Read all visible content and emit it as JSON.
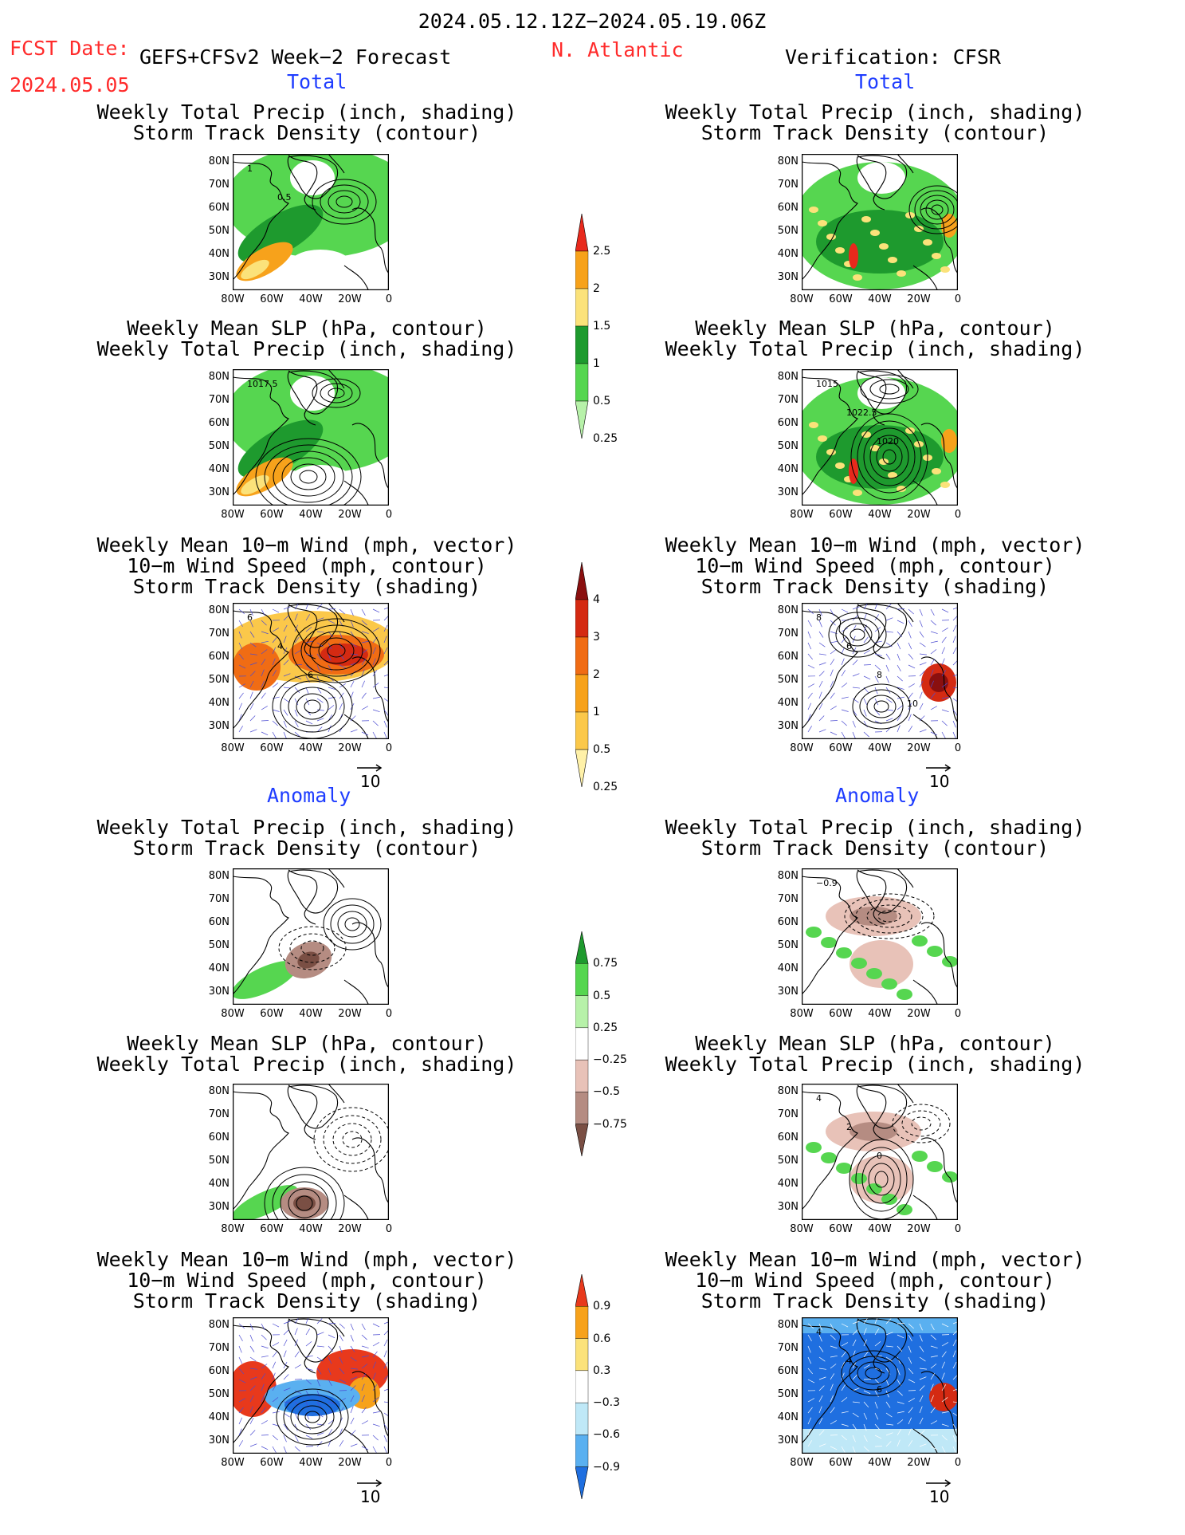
{
  "header": {
    "period": "2024.05.12.12Z−2024.05.19.06Z",
    "fcst_date_label": "FCST Date:",
    "fcst_date": "2024.05.05",
    "model": "GEFS+CFSv2 Week−2 Forecast",
    "region": "N. Atlantic",
    "verification": "Verification: CFSR"
  },
  "sections": {
    "total": "Total",
    "anomaly": "Anomaly"
  },
  "panel_titles": {
    "precip_track": [
      "Weekly Total Precip (inch, shading)",
      "Storm Track Density (contour)"
    ],
    "slp_precip": [
      "Weekly Mean SLP (hPa, contour)",
      "Weekly Total Precip (inch, shading)"
    ],
    "wind_track": [
      "Weekly Mean 10−m Wind (mph, vector)",
      "10−m Wind Speed (mph, contour)",
      "Storm Track Density (shading)"
    ]
  },
  "axes": {
    "lat_ticks": [
      "80N",
      "70N",
      "60N",
      "50N",
      "40N",
      "30N"
    ],
    "lon_ticks": [
      "80W",
      "60W",
      "40W",
      "20W",
      "0"
    ]
  },
  "vector_reference": "10",
  "colorbars": {
    "precip_total": {
      "labels": [
        "2.5",
        "2",
        "1.5",
        "1",
        "0.5",
        "0.25"
      ],
      "colors": [
        "#e8291c",
        "#f7a21b",
        "#fbe27a",
        "#1e9a2e",
        "#56d650",
        "#b7f1a9"
      ]
    },
    "track_total": {
      "labels": [
        "4",
        "3",
        "2",
        "1",
        "0.5",
        "0.25"
      ],
      "colors": [
        "#8a0f0f",
        "#d42a12",
        "#f06c14",
        "#f7a21b",
        "#fbc84a",
        "#fff1a8"
      ]
    },
    "precip_anom": {
      "labels": [
        "0.75",
        "0.5",
        "0.25",
        "−0.25",
        "−0.5",
        "−0.75"
      ],
      "colors": [
        "#1e9a2e",
        "#56d650",
        "#b7f1a9",
        "#ffffff",
        "#e8c2b8",
        "#b58c82",
        "#7a4f44"
      ]
    },
    "track_anom": {
      "labels": [
        "0.9",
        "0.6",
        "0.3",
        "−0.3",
        "−0.6",
        "−0.9"
      ],
      "colors": [
        "#e8391c",
        "#f7a21b",
        "#fbe27a",
        "#ffffff",
        "#bfe8f7",
        "#5ab0f0",
        "#1f6fe0"
      ]
    }
  },
  "contour_labels": {
    "fc_total_precip": [
      "1",
      "0.5"
    ],
    "fc_total_slp": [
      "1017.5"
    ],
    "fc_total_wind": [
      "6",
      "4",
      "6"
    ],
    "vr_total_slp": [
      "1015",
      "1022.5",
      "1020"
    ],
    "vr_total_wind": [
      "8",
      "6",
      "8",
      "10"
    ],
    "vr_anom_precip": [
      "−0.9"
    ],
    "vr_anom_slp": [
      "4",
      "2",
      "0"
    ],
    "vr_anom_wind": [
      "4",
      "4",
      "6"
    ]
  }
}
